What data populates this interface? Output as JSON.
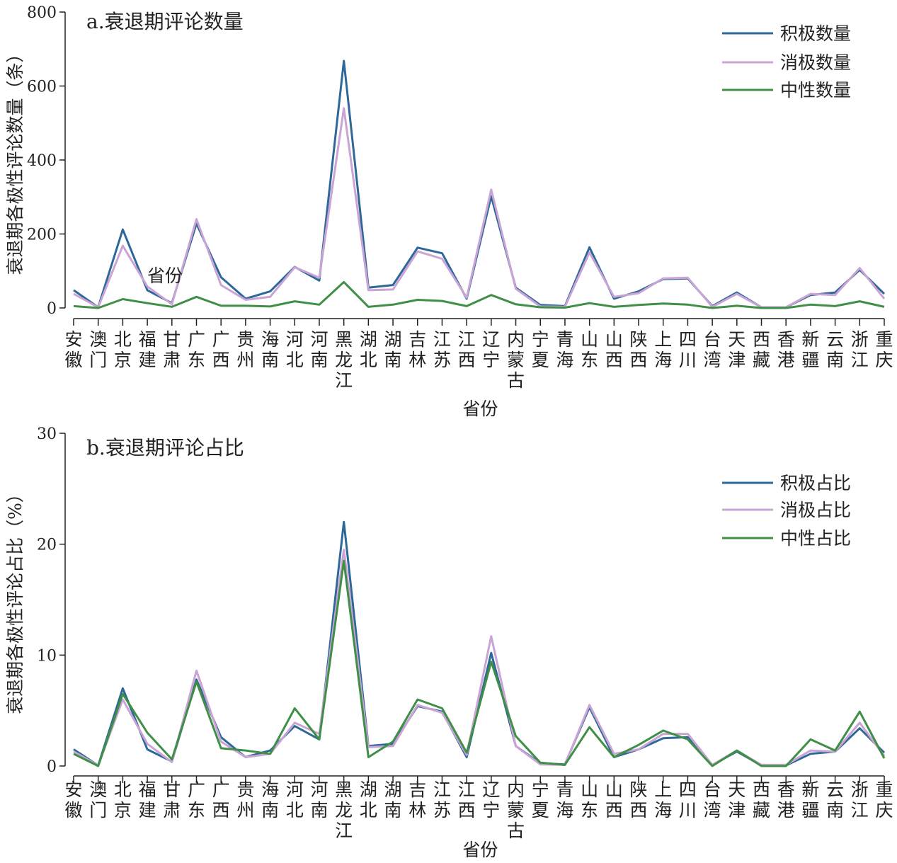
{
  "chart_data": [
    {
      "type": "line",
      "title": "a.衰退期评论数量",
      "xlabel": "省份",
      "ylabel": "衰退期各极性评论数量（条）",
      "ylim": [
        0,
        800
      ],
      "yticks": [
        "0",
        "200",
        "400",
        "600",
        "800"
      ],
      "stray_label": "省份",
      "categories": [
        "安徽",
        "澳门",
        "北京",
        "福建",
        "甘肃",
        "广东",
        "广西",
        "贵州",
        "海南",
        "河北",
        "河南",
        "黑龙江",
        "湖北",
        "湖南",
        "吉林",
        "江苏",
        "江西",
        "辽宁",
        "内蒙古",
        "宁夏",
        "青海",
        "山东",
        "山西",
        "陕西",
        "上海",
        "四川",
        "台湾",
        "天津",
        "西藏",
        "香港",
        "新疆",
        "云南",
        "浙江",
        "重庆"
      ],
      "legend_position": "top-right",
      "series": [
        {
          "name": "积极数量",
          "color": "#2e6899",
          "values": [
            48,
            2,
            212,
            48,
            13,
            228,
            83,
            25,
            45,
            111,
            74,
            668,
            55,
            62,
            163,
            148,
            25,
            302,
            55,
            8,
            5,
            164,
            25,
            45,
            78,
            80,
            5,
            42,
            2,
            2,
            35,
            42,
            103,
            38
          ]
        },
        {
          "name": "消极数量",
          "color": "#c9a4d4",
          "values": [
            38,
            2,
            168,
            58,
            10,
            240,
            62,
            22,
            30,
            110,
            82,
            540,
            48,
            50,
            153,
            133,
            28,
            320,
            52,
            4,
            3,
            150,
            30,
            40,
            80,
            82,
            3,
            38,
            2,
            2,
            38,
            35,
            108,
            25
          ]
        },
        {
          "name": "中性数量",
          "color": "#3f8f47",
          "values": [
            5,
            0,
            24,
            13,
            3,
            30,
            6,
            6,
            4,
            18,
            9,
            70,
            3,
            9,
            22,
            19,
            5,
            35,
            10,
            2,
            1,
            13,
            3,
            8,
            12,
            9,
            0,
            6,
            0,
            0,
            9,
            5,
            18,
            3
          ]
        }
      ]
    },
    {
      "type": "line",
      "title": "b.衰退期评论占比",
      "xlabel": "省份",
      "ylabel": "衰退期各极性评论占比（%）",
      "ylim": [
        0,
        30
      ],
      "yticks": [
        "0",
        "10",
        "20",
        "30"
      ],
      "categories": [
        "安徽",
        "澳门",
        "北京",
        "福建",
        "甘肃",
        "广东",
        "广西",
        "贵州",
        "海南",
        "河北",
        "河南",
        "黑龙江",
        "湖北",
        "湖南",
        "吉林",
        "江苏",
        "江西",
        "辽宁",
        "内蒙古",
        "宁夏",
        "青海",
        "山东",
        "山西",
        "陕西",
        "上海",
        "四川",
        "台湾",
        "天津",
        "西藏",
        "香港",
        "新疆",
        "云南",
        "浙江",
        "重庆"
      ],
      "legend_position": "top-right",
      "series": [
        {
          "name": "积极占比",
          "color": "#2e6899",
          "values": [
            1.5,
            0.05,
            7.0,
            1.5,
            0.4,
            7.8,
            2.6,
            0.8,
            1.4,
            3.6,
            2.4,
            22.0,
            1.8,
            2.0,
            5.4,
            4.9,
            0.8,
            10.2,
            1.8,
            0.25,
            0.15,
            5.3,
            0.8,
            1.5,
            2.5,
            2.6,
            0.1,
            1.3,
            0.05,
            0.05,
            1.1,
            1.3,
            3.4,
            1.2
          ]
        },
        {
          "name": "消极占比",
          "color": "#c9a4d4",
          "values": [
            1.3,
            0.05,
            6.0,
            2.0,
            0.35,
            8.6,
            2.2,
            0.8,
            1.1,
            3.9,
            2.9,
            19.5,
            1.7,
            1.8,
            5.5,
            4.8,
            1.0,
            11.7,
            1.8,
            0.15,
            0.1,
            5.5,
            1.1,
            1.5,
            2.9,
            2.9,
            0.1,
            1.4,
            0.1,
            0.1,
            1.4,
            1.3,
            3.9,
            0.9
          ]
        },
        {
          "name": "中性占比",
          "color": "#3f8f47",
          "values": [
            1.1,
            0.0,
            6.5,
            3.0,
            0.6,
            7.6,
            1.6,
            1.4,
            1.1,
            5.2,
            2.4,
            18.5,
            0.8,
            2.2,
            6.0,
            5.2,
            1.2,
            9.4,
            2.7,
            0.3,
            0.1,
            3.5,
            0.8,
            1.9,
            3.2,
            2.4,
            0.0,
            1.4,
            0.0,
            0.0,
            2.4,
            1.4,
            4.9,
            0.7
          ]
        }
      ]
    }
  ]
}
